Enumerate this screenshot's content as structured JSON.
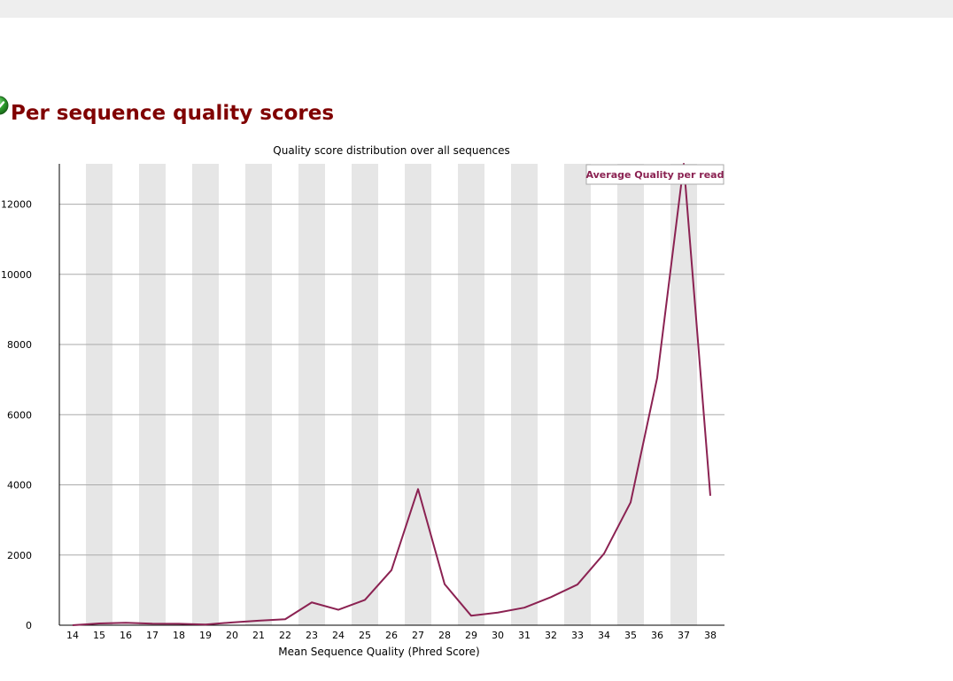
{
  "section": {
    "title": "Per sequence quality scores",
    "status_icon": "pass-check-icon",
    "status_color": "#2e9e2e"
  },
  "chart_data": {
    "type": "line",
    "title": "Quality score distribution over all sequences",
    "xlabel": "Mean Sequence Quality (Phred Score)",
    "ylabel": "",
    "x": [
      14,
      15,
      16,
      17,
      18,
      19,
      20,
      21,
      22,
      23,
      24,
      25,
      26,
      27,
      28,
      29,
      30,
      31,
      32,
      33,
      34,
      35,
      36,
      37,
      38
    ],
    "x_tick_labels": [
      "14",
      "15",
      "16",
      "17",
      "18",
      "19",
      "20",
      "21",
      "22",
      "23",
      "24",
      "25",
      "26",
      "27",
      "28",
      "29",
      "30",
      "31",
      "32",
      "33",
      "34",
      "35",
      "36",
      "37",
      "38"
    ],
    "y_ticks": [
      0,
      2000,
      4000,
      6000,
      8000,
      10000,
      12000
    ],
    "y_tick_labels": [
      "0",
      "2000",
      "4000",
      "6000",
      "8000",
      "10000",
      "12000"
    ],
    "ylim": [
      0,
      13150
    ],
    "series": [
      {
        "name": "Average Quality per read",
        "color": "#8b2252",
        "values": [
          0,
          50,
          70,
          45,
          40,
          20,
          80,
          130,
          170,
          650,
          440,
          720,
          1570,
          3880,
          1170,
          270,
          360,
          500,
          800,
          1160,
          2040,
          3500,
          7050,
          13200,
          3690
        ]
      }
    ],
    "legend_position": "top-right",
    "grid": true,
    "stripe_color": "#e6e6e6",
    "grid_color": "#aaaaaa"
  }
}
